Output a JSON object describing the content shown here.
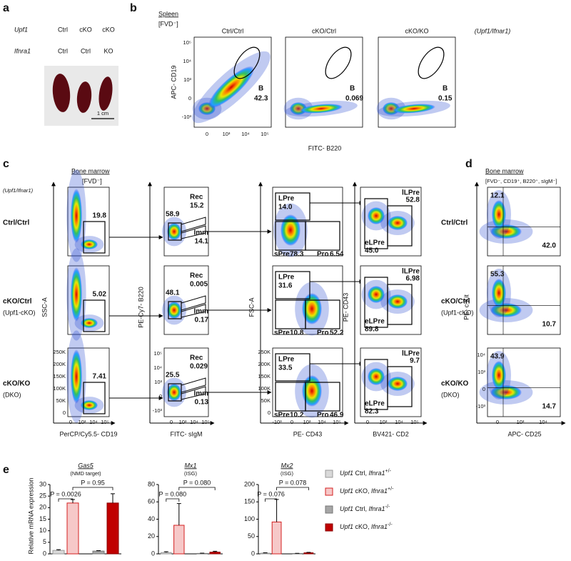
{
  "panel_labels": [
    "a",
    "b",
    "c",
    "d",
    "e"
  ],
  "a": {
    "rows": [
      {
        "gene": "Upf1",
        "values": [
          "Ctrl",
          "cKO",
          "cKO"
        ]
      },
      {
        "gene": "Ifnra1",
        "values": [
          "Ctrl",
          "Ctrl",
          "KO"
        ]
      }
    ],
    "scale_bar": "1 cm"
  },
  "b": {
    "tissue": "Spleen",
    "stain": "[FVD⁻]",
    "genotype_key": "(Upf1/Ifnar1)",
    "plots": [
      {
        "title": "Ctrl/Ctrl",
        "gate": "B",
        "value": "42.3"
      },
      {
        "title": "cKO/Ctrl",
        "gate": "B",
        "value": "0.069"
      },
      {
        "title": "cKO/KO",
        "gate": "B",
        "value": "0.15"
      }
    ],
    "y_label": "APC- CD19",
    "x_label": "FITC- B220",
    "y_ticks": [
      "10⁵",
      "10⁴",
      "10³",
      "0",
      "-10³"
    ],
    "x_ticks": [
      "0",
      "10³",
      "10⁴",
      "10⁵"
    ]
  },
  "c": {
    "tissue": "Bone marrow",
    "stain": "[FVD⁻]",
    "genotype_key": "(Upf1/Ifnar1)",
    "rows": [
      {
        "genotype": "Ctrl/Ctrl"
      },
      {
        "genotype": "cKO/Ctrl",
        "note": "(Upf1-cKO)"
      },
      {
        "genotype": "cKO/KO",
        "note": "(DKO)"
      }
    ],
    "col1": {
      "values": [
        "19.8",
        "5.02",
        "7.41"
      ],
      "y_label": "SSC-A",
      "x_label": "PerCP/Cy5.5- CD19"
    },
    "col2": {
      "gate_names": [
        "Rec",
        "Imm"
      ],
      "rows": [
        [
          "58.9",
          "15.2",
          "14.1"
        ],
        [
          "48.1",
          "0.005",
          "0.17"
        ],
        [
          "25.5",
          "0.029",
          "0.13"
        ]
      ],
      "y_label": "PE-Cy7- B220",
      "x_label": "FITC- sIgM"
    },
    "col3": {
      "gate_names": [
        "LPre",
        "sPre",
        "Pro"
      ],
      "rows": [
        [
          "14.0",
          "78.3",
          "6.54"
        ],
        [
          "31.6",
          "10.8",
          "52.2"
        ],
        [
          "33.5",
          "10.2",
          "46.9"
        ]
      ],
      "y_label": "FSC-A",
      "x_label": "PE- CD43"
    },
    "col4": {
      "gate_names": [
        "lLPre",
        "eLPre"
      ],
      "rows": [
        [
          "52.8",
          "45.0"
        ],
        [
          "6.98",
          "89.8"
        ],
        [
          "9.7",
          "82.3"
        ]
      ],
      "y_label": "PE- CD43",
      "x_label": "BV421- CD2"
    },
    "scatter_ticks": [
      "250K",
      "200K",
      "150K",
      "100K",
      "50K",
      "0"
    ],
    "log_ticks": [
      "10⁵",
      "10⁴",
      "10³",
      "0",
      "-10³"
    ],
    "x_log_ticks": [
      "0",
      "10³",
      "10⁴",
      "10⁵"
    ],
    "x_log_ticks_neg": [
      "-10³",
      "0",
      "10³",
      "10⁴",
      "10⁵"
    ]
  },
  "d": {
    "tissue": "Bone marrow",
    "stain": "[FVD⁻, CD19⁺, B220⁺, sIgM⁻]",
    "rows": [
      [
        "12.1",
        "42.0"
      ],
      [
        "55.3",
        "10.7"
      ],
      [
        "43.9",
        "14.7"
      ]
    ],
    "y_label": "PE- c-Kit",
    "x_label": "APC- CD25",
    "y_ticks": [
      "10⁴",
      "10³",
      "0",
      "-10³"
    ],
    "x_ticks": [
      "0",
      "10³",
      "10⁴"
    ]
  },
  "e": {
    "y_label": "Relative mRNA expression",
    "legend": [
      {
        "gene1": "Upf1",
        "label": " Ctrl, ",
        "gene2": "Ifnra1",
        "sup": "+/-",
        "color": "#d9d9d9",
        "edge": "#999999"
      },
      {
        "gene1": "Upf1",
        "label": " cKO, ",
        "gene2": "Ifnra1",
        "sup": "+/-",
        "color": "#f6c8c8",
        "edge": "#d42020"
      },
      {
        "gene1": "Upf1",
        "label": " Ctrl, ",
        "gene2": "Ifnra1",
        "sup": "-/-",
        "color": "#a6a6a6",
        "edge": "#777777"
      },
      {
        "gene1": "Upf1",
        "label": " cKO, ",
        "gene2": "Ifnra1",
        "sup": "-/-",
        "color": "#c00000",
        "edge": "#8a0000"
      }
    ]
  },
  "chart_data": [
    {
      "type": "bar",
      "title": "Gas5",
      "subtitle": "(NMD target)",
      "values": [
        1.5,
        22,
        1.2,
        22
      ],
      "errors": [
        0.3,
        1.5,
        0.2,
        4
      ],
      "ylim": [
        0,
        30
      ],
      "yticks": [
        0,
        5,
        10,
        15,
        20,
        25,
        30
      ],
      "annotations": [
        "P = 0.0026",
        "P = 0.95"
      ]
    },
    {
      "type": "bar",
      "title": "Mx1",
      "subtitle": "(ISG)",
      "values": [
        1.5,
        33,
        0.5,
        2
      ],
      "errors": [
        1,
        25,
        0.3,
        1
      ],
      "ylim": [
        0,
        80
      ],
      "yticks": [
        0,
        20,
        40,
        60,
        80
      ],
      "annotations": [
        "P = 0.080",
        "P = 0.080"
      ]
    },
    {
      "type": "bar",
      "title": "Mx2",
      "subtitle": "(ISG)",
      "values": [
        2,
        92,
        1,
        3
      ],
      "errors": [
        1,
        65,
        0.5,
        1.5
      ],
      "ylim": [
        0,
        200
      ],
      "yticks": [
        0,
        50,
        100,
        150,
        200
      ],
      "annotations": [
        "P = 0.076",
        "P = 0.078"
      ]
    }
  ]
}
